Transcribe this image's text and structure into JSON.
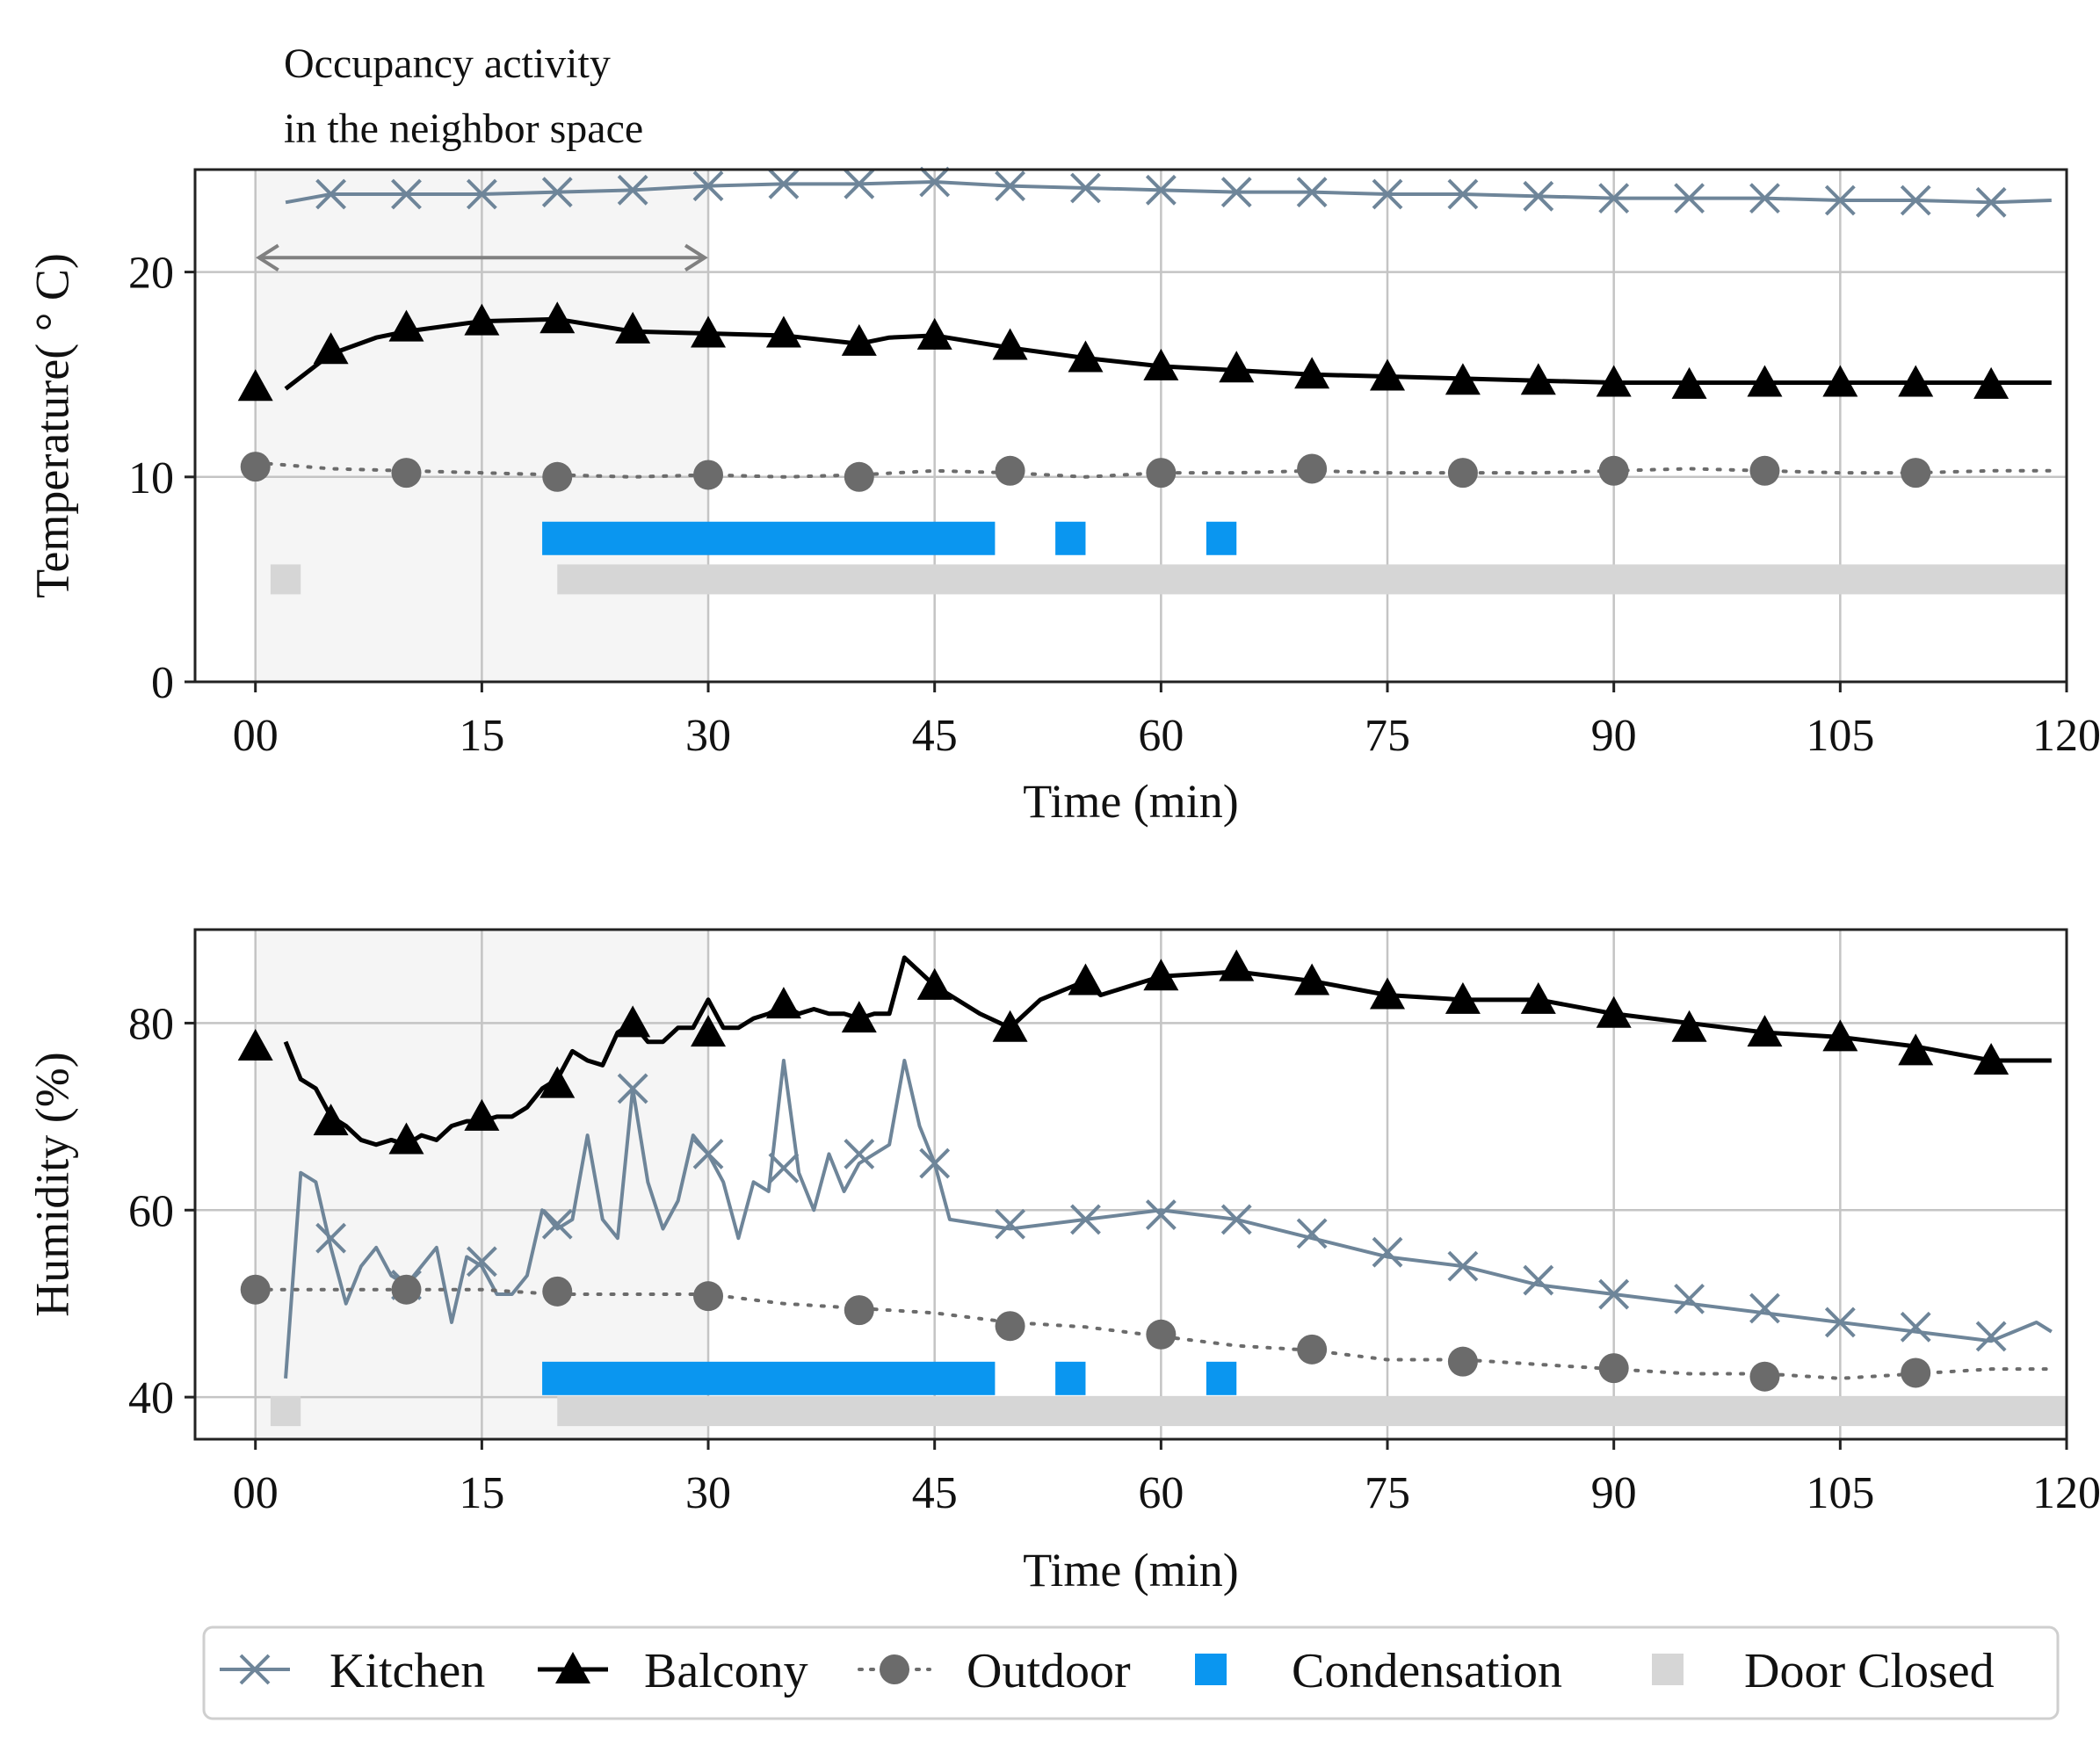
{
  "legend": {
    "entries": [
      {
        "label": "Kitchen",
        "icon": "x-marker-line-icon",
        "color": "#6e8599"
      },
      {
        "label": "Balcony",
        "icon": "triangle-marker-line-icon",
        "color": "#000000"
      },
      {
        "label": "Outdoor",
        "icon": "circle-marker-dotted-line-icon",
        "color": "#6b6b6b"
      },
      {
        "label": "Condensation",
        "icon": "blue-square-icon",
        "color": "#0a96f0"
      },
      {
        "label": "Door Closed",
        "icon": "gray-square-icon",
        "color": "#d6d6d6"
      }
    ]
  },
  "chart_data": [
    {
      "type": "line",
      "xlabel": "Time (min)",
      "ylabel": "Temperature( ° C)",
      "xlim": [
        -4,
        120
      ],
      "ylim": [
        0,
        25
      ],
      "xticks": [
        0,
        15,
        30,
        45,
        60,
        75,
        90,
        105,
        120
      ],
      "xtick_labels": [
        "00",
        "15",
        "30",
        "45",
        "60",
        "75",
        "90",
        "105",
        "120"
      ],
      "yticks": [
        0,
        10,
        20
      ],
      "grid": true,
      "annotation": {
        "text_lines": [
          "Occupancy activity",
          "in the neighbor space"
        ],
        "x_start": 0,
        "x_end": 30,
        "y": 20.7
      },
      "shaded_region": {
        "x_start": 0,
        "x_end": 30
      },
      "series": [
        {
          "name": "Kitchen",
          "color": "#6e8599",
          "marker": "x",
          "x": [
            2,
            5,
            10,
            15,
            20,
            25,
            30,
            35,
            40,
            45,
            50,
            55,
            60,
            65,
            70,
            75,
            80,
            85,
            90,
            95,
            100,
            105,
            110,
            115,
            119
          ],
          "y": [
            23.4,
            23.8,
            23.8,
            23.8,
            23.9,
            24.0,
            24.2,
            24.3,
            24.3,
            24.4,
            24.2,
            24.1,
            24.0,
            23.9,
            23.9,
            23.8,
            23.8,
            23.7,
            23.6,
            23.6,
            23.6,
            23.5,
            23.5,
            23.4,
            23.5
          ],
          "marker_x": [
            5,
            10,
            15,
            20,
            25,
            30,
            35,
            40,
            45,
            50,
            55,
            60,
            65,
            70,
            75,
            80,
            85,
            90,
            95,
            100,
            105,
            110,
            115
          ],
          "marker_y": [
            23.8,
            23.8,
            23.8,
            23.9,
            24.0,
            24.2,
            24.3,
            24.3,
            24.4,
            24.2,
            24.1,
            24.0,
            23.9,
            23.9,
            23.8,
            23.8,
            23.7,
            23.6,
            23.6,
            23.6,
            23.5,
            23.5,
            23.4
          ]
        },
        {
          "name": "Balcony",
          "color": "#000000",
          "marker": "triangle",
          "x": [
            2,
            5,
            8,
            10,
            15,
            20,
            25,
            30,
            35,
            40,
            42,
            45,
            50,
            55,
            60,
            65,
            70,
            75,
            80,
            85,
            90,
            95,
            100,
            105,
            110,
            115,
            119
          ],
          "y": [
            14.3,
            16.0,
            16.8,
            17.1,
            17.6,
            17.7,
            17.1,
            17.0,
            16.9,
            16.5,
            16.8,
            16.9,
            16.3,
            15.8,
            15.4,
            15.2,
            15.0,
            14.9,
            14.8,
            14.7,
            14.6,
            14.6,
            14.6,
            14.6,
            14.6,
            14.6,
            14.6
          ],
          "marker_x": [
            0,
            5,
            10,
            15,
            20,
            25,
            30,
            35,
            40,
            45,
            50,
            55,
            60,
            65,
            70,
            75,
            80,
            85,
            90,
            95,
            100,
            105,
            110,
            115
          ],
          "marker_y": [
            14.4,
            16.2,
            17.3,
            17.6,
            17.7,
            17.2,
            17.0,
            17.0,
            16.6,
            16.9,
            16.4,
            15.8,
            15.4,
            15.3,
            15.0,
            14.9,
            14.7,
            14.7,
            14.6,
            14.5,
            14.6,
            14.6,
            14.6,
            14.5
          ],
          "start_marker_x": 0,
          "start_marker_y": 14.4
        },
        {
          "name": "Outdoor",
          "color": "#6b6b6b",
          "marker": "circle",
          "dotted": true,
          "x": [
            0,
            5,
            10,
            15,
            20,
            25,
            30,
            35,
            40,
            45,
            50,
            55,
            60,
            65,
            70,
            75,
            80,
            85,
            90,
            95,
            100,
            105,
            110,
            115,
            119
          ],
          "y": [
            10.7,
            10.4,
            10.3,
            10.2,
            10.1,
            10.0,
            10.1,
            10.0,
            10.1,
            10.3,
            10.2,
            10.0,
            10.2,
            10.2,
            10.3,
            10.2,
            10.2,
            10.2,
            10.3,
            10.4,
            10.3,
            10.2,
            10.2,
            10.3,
            10.3
          ],
          "marker_x": [
            0,
            10,
            20,
            30,
            40,
            50,
            60,
            70,
            80,
            90,
            100,
            110
          ],
          "marker_y": [
            10.5,
            10.2,
            10.0,
            10.1,
            10.0,
            10.3,
            10.2,
            10.4,
            10.2,
            10.3,
            10.3,
            10.2
          ]
        }
      ],
      "condensation": {
        "y": 7.0,
        "intervals": [
          [
            19,
            49
          ],
          [
            53,
            55
          ],
          [
            63,
            65
          ]
        ]
      },
      "door_closed": {
        "y": 5.0,
        "intervals": [
          [
            1,
            3
          ],
          [
            20,
            120
          ]
        ]
      }
    },
    {
      "type": "line",
      "xlabel": "Time (min)",
      "ylabel": "Humidity (%)",
      "xlim": [
        -4,
        120
      ],
      "ylim": [
        35.5,
        90
      ],
      "xticks": [
        0,
        15,
        30,
        45,
        60,
        75,
        90,
        105,
        120
      ],
      "xtick_labels": [
        "00",
        "15",
        "30",
        "45",
        "60",
        "75",
        "90",
        "105",
        "120"
      ],
      "yticks": [
        40,
        60,
        80
      ],
      "grid": true,
      "shaded_region": {
        "x_start": 0,
        "x_end": 30
      },
      "series": [
        {
          "name": "Kitchen",
          "color": "#6e8599",
          "marker": "x",
          "x": [
            2,
            3,
            4,
            5,
            6,
            7,
            8,
            9,
            10,
            11,
            12,
            13,
            14,
            15,
            16,
            17,
            18,
            19,
            20,
            21,
            22,
            23,
            24,
            25,
            26,
            27,
            28,
            29,
            30,
            31,
            32,
            33,
            34,
            35,
            36,
            37,
            38,
            39,
            40,
            41,
            42,
            43,
            44,
            45,
            46,
            50,
            55,
            60,
            65,
            70,
            75,
            80,
            85,
            90,
            95,
            100,
            105,
            110,
            115,
            118,
            119
          ],
          "y": [
            42,
            64,
            63,
            56,
            50,
            54,
            56,
            53,
            52,
            54,
            56,
            48,
            55,
            54,
            51,
            51,
            53,
            60,
            58,
            59,
            68,
            59,
            57,
            73,
            63,
            58,
            61,
            68,
            66,
            63,
            57,
            63,
            62,
            76,
            64,
            60,
            66,
            62,
            65,
            66,
            67,
            76,
            69,
            65,
            59,
            58,
            59,
            60,
            59,
            57,
            55,
            54,
            52,
            51,
            50,
            49,
            48,
            47,
            46,
            48,
            47
          ],
          "marker_x": [
            5,
            10,
            15,
            20,
            25,
            30,
            35,
            40,
            45,
            50,
            55,
            60,
            65,
            70,
            75,
            80,
            85,
            90,
            95,
            100,
            105,
            110,
            115
          ],
          "marker_y": [
            57,
            52,
            54.5,
            58.5,
            73,
            66,
            64.5,
            66,
            65,
            58.5,
            59,
            59.5,
            59,
            57.5,
            55.5,
            54,
            52.5,
            51,
            50.5,
            49.5,
            48,
            47.5,
            46.5
          ]
        },
        {
          "name": "Balcony",
          "color": "#000000",
          "marker": "triangle",
          "x": [
            2,
            3,
            4,
            5,
            6,
            7,
            8,
            9,
            10,
            11,
            12,
            13,
            14,
            15,
            16,
            17,
            18,
            19,
            20,
            21,
            22,
            23,
            24,
            25,
            26,
            27,
            28,
            29,
            30,
            31,
            32,
            33,
            34,
            35,
            36,
            37,
            38,
            39,
            40,
            41,
            42,
            43,
            44,
            45,
            46,
            48,
            50,
            52,
            55,
            56,
            60,
            65,
            70,
            75,
            80,
            85,
            90,
            95,
            100,
            105,
            110,
            115,
            119
          ],
          "y": [
            78,
            74,
            73,
            70,
            69,
            67.5,
            67,
            67.5,
            67,
            68,
            67.5,
            69,
            69.5,
            69.5,
            70,
            70,
            71,
            73,
            74,
            77,
            76,
            75.5,
            79,
            80,
            78,
            78,
            79.5,
            79.5,
            82.5,
            79.5,
            79.5,
            80.5,
            81,
            82,
            81,
            81.5,
            81,
            81,
            80.5,
            81,
            81,
            87,
            85.5,
            84,
            83,
            81,
            79.5,
            82.5,
            84.5,
            83,
            85,
            85.5,
            84.5,
            83,
            82.5,
            82.5,
            81,
            80,
            79,
            78.5,
            77.5,
            76,
            76
          ],
          "marker_x": [
            0,
            5,
            10,
            15,
            20,
            25,
            30,
            35,
            40,
            45,
            50,
            55,
            60,
            65,
            70,
            75,
            80,
            85,
            90,
            95,
            100,
            105,
            110,
            115
          ],
          "marker_y": [
            77.5,
            69.5,
            67.5,
            70,
            73.5,
            80,
            79,
            82,
            80.5,
            84,
            79.5,
            84.5,
            85,
            86,
            84.5,
            83,
            82.5,
            82.5,
            81,
            79.5,
            79,
            78.5,
            77,
            76
          ]
        },
        {
          "name": "Outdoor",
          "color": "#6b6b6b",
          "marker": "circle",
          "dotted": true,
          "x": [
            0,
            5,
            10,
            15,
            20,
            25,
            30,
            35,
            40,
            45,
            50,
            55,
            60,
            65,
            70,
            75,
            80,
            85,
            90,
            95,
            100,
            105,
            110,
            115,
            119
          ],
          "y": [
            51.5,
            51.5,
            51.5,
            51.5,
            51,
            51,
            51,
            50,
            49.5,
            49,
            48,
            47.5,
            46.5,
            45.5,
            45,
            44,
            44,
            43.5,
            43,
            42.5,
            42.5,
            42,
            42.5,
            43,
            43
          ],
          "marker_x": [
            0,
            10,
            20,
            30,
            40,
            50,
            60,
            70,
            80,
            90,
            100,
            110
          ],
          "marker_y": [
            51.5,
            51.5,
            51.3,
            50.8,
            49.3,
            47.6,
            46.7,
            45.1,
            43.8,
            43.1,
            42.2,
            42.6
          ]
        }
      ],
      "condensation": {
        "y": 42.0,
        "intervals": [
          [
            19,
            49
          ],
          [
            53,
            55
          ],
          [
            63,
            65
          ]
        ]
      },
      "door_closed": {
        "y": 38.5,
        "intervals": [
          [
            1,
            3
          ],
          [
            20,
            120
          ]
        ]
      }
    }
  ]
}
